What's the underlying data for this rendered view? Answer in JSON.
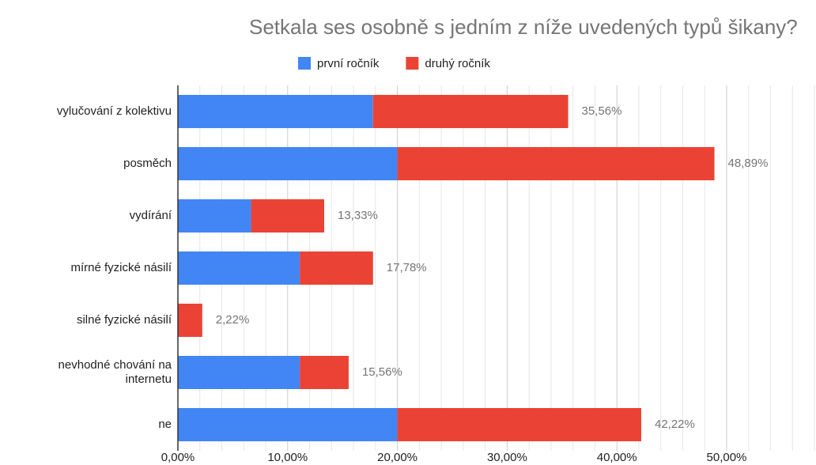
{
  "chart_data": {
    "type": "stacked_barh",
    "title": "Setkala ses osobně s jedním z níže uvedených typů šikany?",
    "categories": [
      "vylučování z kolektivu",
      "posměch",
      "vydírání",
      "mírné fyzické násilí",
      "silné fyzické násilí",
      "nevhodné chování na internetu",
      "ne"
    ],
    "series": [
      {
        "name": "první ročník",
        "color": "#4285f4",
        "values": [
          17.78,
          20,
          6.67,
          11.11,
          0,
          11.11,
          20
        ]
      },
      {
        "name": "druhý ročník",
        "color": "#ea4335",
        "values": [
          17.78,
          28.89,
          6.66,
          6.67,
          2.22,
          4.45,
          22.22
        ]
      }
    ],
    "totals": [
      35.56,
      48.89,
      13.33,
      17.78,
      2.22,
      15.56,
      42.22
    ],
    "total_labels": [
      "35,56%",
      "48,89%",
      "13,33%",
      "17,78%",
      "2,22%",
      "15,56%",
      "42,22%"
    ],
    "xlim": [
      0,
      58
    ],
    "xticks": [
      {
        "value": 0,
        "label": "0,00%"
      },
      {
        "value": 10,
        "label": "10,00%"
      },
      {
        "value": 20,
        "label": "20,00%"
      },
      {
        "value": 30,
        "label": "30,00%"
      },
      {
        "value": 40,
        "label": "40,00%"
      },
      {
        "value": 50,
        "label": "50,00%"
      }
    ],
    "xminorticks": [
      2,
      4,
      6,
      8,
      12,
      14,
      16,
      18,
      22,
      24,
      26,
      28,
      32,
      34,
      36,
      38,
      42,
      44,
      46,
      48,
      52,
      54,
      56,
      58
    ],
    "grid": true,
    "legend": "top"
  }
}
